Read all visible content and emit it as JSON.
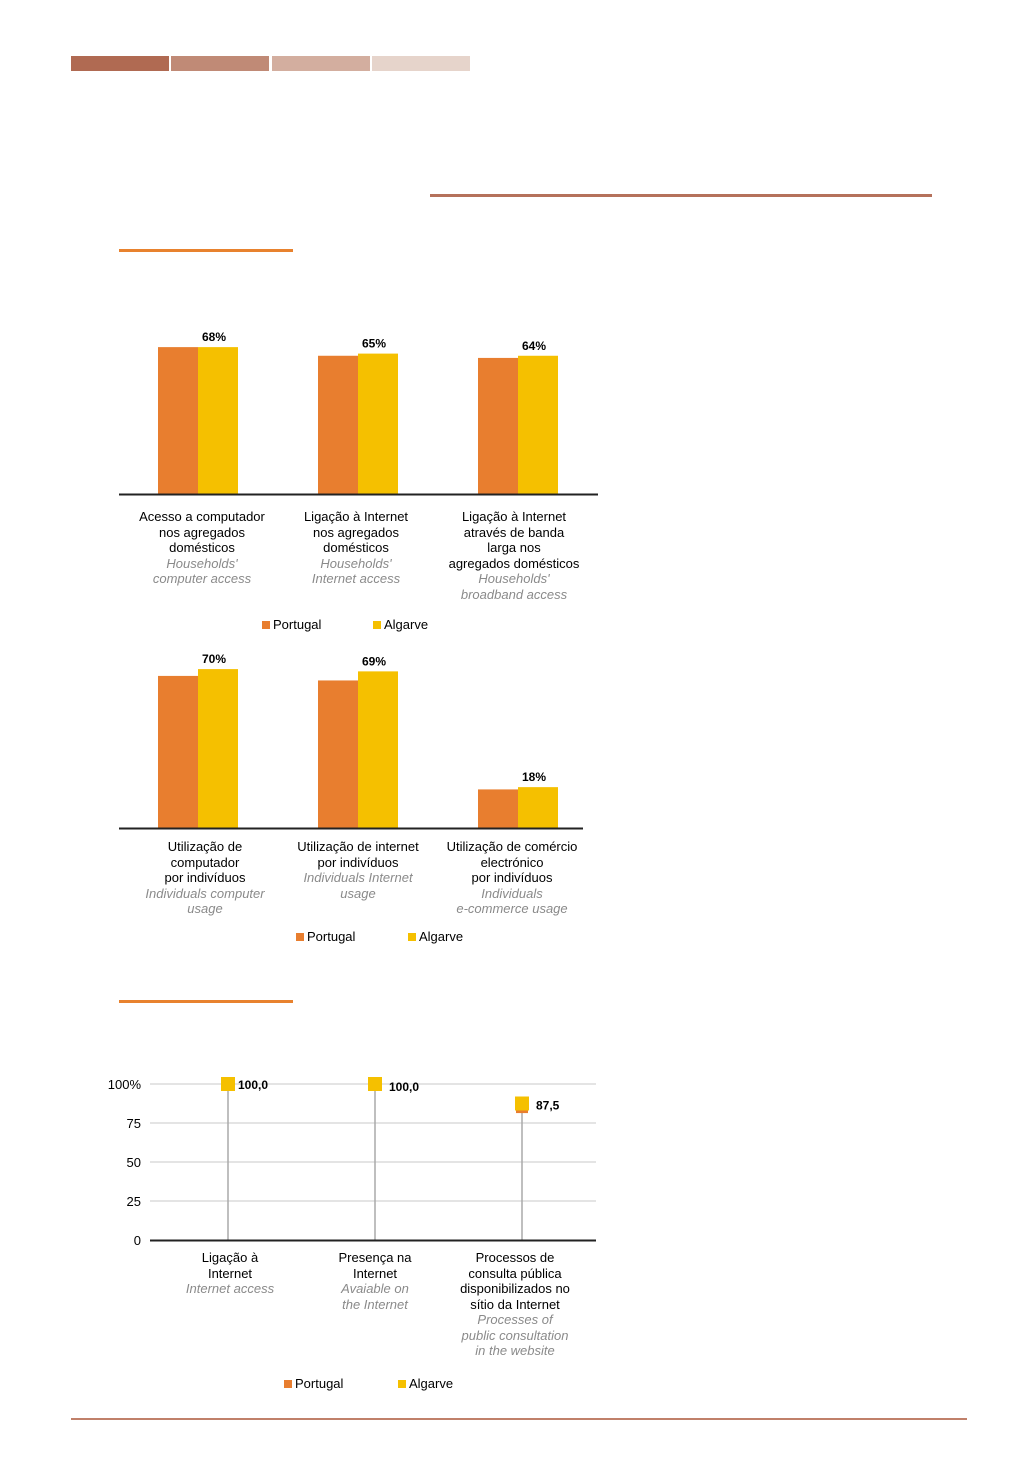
{
  "colors": {
    "deco": [
      "#b06a52",
      "#c08a76",
      "#d3ae9f",
      "#e6d4cb"
    ],
    "rule_top": "#b5715b",
    "rule_section": "#e8822e",
    "rule_bottom": "#c0806a",
    "portugal": "#e87e2f",
    "algarve": "#f5c000",
    "axis": "#222222",
    "grid": "#c8c8c8"
  },
  "legend": {
    "portugal": "Portugal",
    "algarve": "Algarve"
  },
  "chart_data": [
    {
      "type": "bar",
      "title": "",
      "categories": [
        {
          "pt": [
            "Acesso a computador",
            "nos agregados",
            "domésticos"
          ],
          "en": [
            "Households'",
            "computer access"
          ]
        },
        {
          "pt": [
            "Ligação à Internet",
            "nos agregados",
            "domésticos"
          ],
          "en": [
            "Households'",
            "Internet access"
          ]
        },
        {
          "pt": [
            "Ligação à Internet",
            "através de banda",
            "larga nos",
            "agregados domésticos"
          ],
          "en": [
            "Households'",
            "broadband access"
          ]
        }
      ],
      "series": [
        {
          "name": "Portugal",
          "values": [
            68,
            64,
            63
          ]
        },
        {
          "name": "Algarve",
          "values": [
            68,
            65,
            64
          ]
        }
      ],
      "data_labels": [
        "68%",
        "65%",
        "64%"
      ],
      "ylim": [
        0,
        100
      ]
    },
    {
      "type": "bar",
      "title": "",
      "categories": [
        {
          "pt": [
            "Utilização de",
            "computador",
            "por indivíduos"
          ],
          "en": [
            "Individuals computer",
            "usage"
          ]
        },
        {
          "pt": [
            "Utilização de internet",
            "por indivíduos"
          ],
          "en": [
            "Individuals Internet",
            "usage"
          ]
        },
        {
          "pt": [
            "Utilização de comércio",
            "electrónico",
            "por indivíduos"
          ],
          "en": [
            "Individuals",
            "e-commerce  usage"
          ]
        }
      ],
      "series": [
        {
          "name": "Portugal",
          "values": [
            67,
            65,
            17
          ]
        },
        {
          "name": "Algarve",
          "values": [
            70,
            69,
            18
          ]
        }
      ],
      "data_labels": [
        "70%",
        "69%",
        "18%"
      ],
      "ylim": [
        0,
        100
      ]
    },
    {
      "type": "scatter",
      "title": "",
      "categories": [
        {
          "pt": [
            "Ligação à",
            "Internet"
          ],
          "en": [
            "Internet access"
          ]
        },
        {
          "pt": [
            "Presença na",
            "Internet"
          ],
          "en": [
            "Avaiable on",
            "the Internet"
          ]
        },
        {
          "pt": [
            "Processos de",
            "consulta pública",
            "disponibilizados no",
            "sítio da Internet"
          ],
          "en": [
            "Processes of",
            "public consultation",
            "in the website"
          ]
        }
      ],
      "series": [
        {
          "name": "Portugal",
          "values": [
            100,
            100,
            82
          ]
        },
        {
          "name": "Algarve",
          "values": [
            100,
            100,
            87.5
          ]
        }
      ],
      "data_labels": [
        "100,0",
        "100,0",
        "87,5"
      ],
      "y_ticks": [
        "0",
        "25",
        "50",
        "75",
        "100%"
      ],
      "ylim": [
        0,
        100
      ],
      "grid": true
    }
  ]
}
